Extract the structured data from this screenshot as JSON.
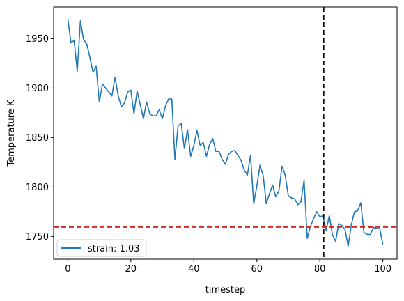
{
  "chart_data": {
    "type": "line",
    "xlabel": "timestep",
    "ylabel": "Temperature K",
    "xlim": [
      -4.5,
      104.5
    ],
    "ylim": [
      1727,
      1982
    ],
    "xticks": [
      0,
      20,
      40,
      60,
      80,
      100
    ],
    "yticks": [
      1750,
      1800,
      1850,
      1900,
      1950
    ],
    "grid": false,
    "legend_position": "lower-left",
    "series": [
      {
        "name": "strain: 1.03",
        "color": "#1f77b4",
        "x": [
          0,
          1,
          2,
          3,
          4,
          5,
          6,
          7,
          8,
          9,
          10,
          11,
          12,
          13,
          14,
          15,
          16,
          17,
          18,
          19,
          20,
          21,
          22,
          23,
          24,
          25,
          26,
          27,
          28,
          29,
          30,
          31,
          32,
          33,
          34,
          35,
          36,
          37,
          38,
          39,
          40,
          41,
          42,
          43,
          44,
          45,
          46,
          47,
          48,
          49,
          50,
          51,
          52,
          53,
          54,
          55,
          56,
          57,
          58,
          59,
          60,
          61,
          62,
          63,
          64,
          65,
          66,
          67,
          68,
          69,
          70,
          71,
          72,
          73,
          74,
          75,
          76,
          77,
          78,
          79,
          80,
          81,
          82,
          83,
          84,
          85,
          86,
          87,
          88,
          89,
          90,
          91,
          92,
          93,
          94,
          95,
          96,
          97,
          98,
          99,
          100
        ],
        "y": [
          1970,
          1946,
          1948,
          1917,
          1968,
          1949,
          1945,
          1931,
          1916,
          1922,
          1886,
          1904,
          1900,
          1896,
          1892,
          1911,
          1892,
          1881,
          1885,
          1896,
          1898,
          1874,
          1897,
          1883,
          1869,
          1886,
          1874,
          1872,
          1872,
          1878,
          1869,
          1882,
          1889,
          1889,
          1828,
          1862,
          1864,
          1839,
          1858,
          1831,
          1842,
          1857,
          1842,
          1845,
          1831,
          1843,
          1849,
          1836,
          1836,
          1828,
          1823,
          1833,
          1836,
          1837,
          1832,
          1827,
          1817,
          1812,
          1832,
          1783,
          1801,
          1822,
          1812,
          1783,
          1793,
          1802,
          1790,
          1796,
          1821,
          1812,
          1791,
          1789,
          1788,
          1782,
          1785,
          1807,
          1748,
          1760,
          1768,
          1775,
          1770,
          1771,
          1756,
          1771,
          1752,
          1745,
          1763,
          1761,
          1757,
          1740,
          1762,
          1775,
          1776,
          1784,
          1754,
          1752,
          1752,
          1759,
          1758,
          1758,
          1742
        ]
      }
    ],
    "reference_lines": [
      {
        "orientation": "vertical",
        "value": 81.2,
        "color": "#000000",
        "style": "dashed"
      },
      {
        "orientation": "horizontal",
        "value": 1759.5,
        "color": "#d62728",
        "style": "dashed"
      }
    ]
  }
}
